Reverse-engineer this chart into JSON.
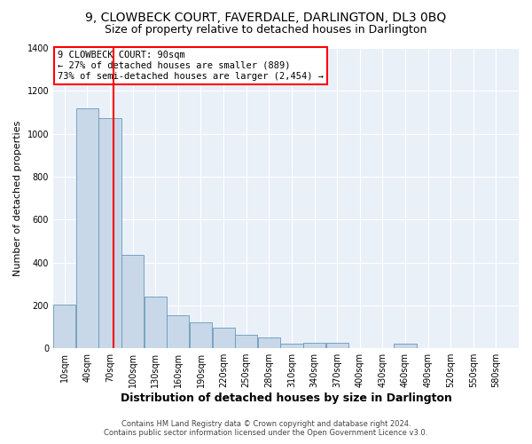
{
  "title": "9, CLOWBECK COURT, FAVERDALE, DARLINGTON, DL3 0BQ",
  "subtitle": "Size of property relative to detached houses in Darlington",
  "xlabel": "Distribution of detached houses by size in Darlington",
  "ylabel": "Number of detached properties",
  "bar_color": "#c8d8e8",
  "bar_edge_color": "#6699bb",
  "background_color": "#eaf0f8",
  "grid_color": "#ffffff",
  "annotation_text": "9 CLOWBECK COURT: 90sqm\n← 27% of detached houses are smaller (889)\n73% of semi-detached houses are larger (2,454) →",
  "red_line_x": 90,
  "footer_line1": "Contains HM Land Registry data © Crown copyright and database right 2024.",
  "footer_line2": "Contains public sector information licensed under the Open Government Licence v3.0.",
  "bins": [
    10,
    40,
    70,
    100,
    130,
    160,
    190,
    220,
    250,
    280,
    310,
    340,
    370,
    400,
    430,
    460,
    490,
    520,
    550,
    580,
    610
  ],
  "counts": [
    205,
    1120,
    1075,
    435,
    240,
    155,
    120,
    95,
    65,
    50,
    20,
    25,
    25,
    0,
    0,
    20,
    0,
    0,
    0,
    0
  ],
  "ylim": [
    0,
    1400
  ],
  "yticks": [
    0,
    200,
    400,
    600,
    800,
    1000,
    1200,
    1400
  ]
}
